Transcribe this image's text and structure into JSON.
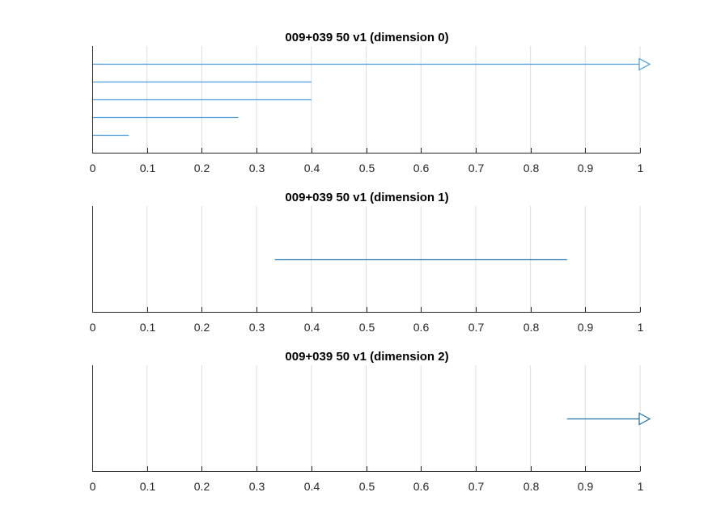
{
  "chart_data": [
    {
      "type": "barcode",
      "title": "009+039 50 v1 (dimension 0)",
      "xlim": [
        0,
        1
      ],
      "xticks": [
        "0",
        "0.1",
        "0.2",
        "0.3",
        "0.4",
        "0.5",
        "0.6",
        "0.7",
        "0.8",
        "0.9",
        "1"
      ],
      "grid": true,
      "bar_color": "#4a9bd8",
      "intervals": [
        {
          "birth": 0,
          "death": null,
          "infinite": true
        },
        {
          "birth": 0,
          "death": 0.4,
          "infinite": false
        },
        {
          "birth": 0,
          "death": 0.4,
          "infinite": false
        },
        {
          "birth": 0,
          "death": 0.2667,
          "infinite": false
        },
        {
          "birth": 0,
          "death": 0.0667,
          "infinite": false
        }
      ]
    },
    {
      "type": "barcode",
      "title": "009+039 50 v1 (dimension 1)",
      "xlim": [
        0,
        1
      ],
      "xticks": [
        "0",
        "0.1",
        "0.2",
        "0.3",
        "0.4",
        "0.5",
        "0.6",
        "0.7",
        "0.8",
        "0.9",
        "1"
      ],
      "grid": true,
      "bar_color": "#1f6fa8",
      "intervals": [
        {
          "birth": 0.3333,
          "death": 0.8667,
          "infinite": false
        }
      ]
    },
    {
      "type": "barcode",
      "title": "009+039 50 v1 (dimension 2)",
      "xlim": [
        0,
        1
      ],
      "xticks": [
        "0",
        "0.1",
        "0.2",
        "0.3",
        "0.4",
        "0.5",
        "0.6",
        "0.7",
        "0.8",
        "0.9",
        "1"
      ],
      "grid": true,
      "bar_color": "#1f6fa8",
      "intervals": [
        {
          "birth": 0.8667,
          "death": null,
          "infinite": true
        }
      ]
    }
  ]
}
